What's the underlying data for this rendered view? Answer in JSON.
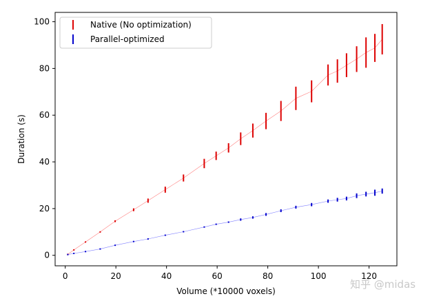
{
  "chart_data": {
    "type": "scatter",
    "title": "",
    "xlabel": "Volume (*10000 voxels)",
    "ylabel": "Duration (s)",
    "xlim": [
      -4,
      131
    ],
    "ylim": [
      -4.5,
      104
    ],
    "xticks": [
      0,
      20,
      40,
      60,
      80,
      100,
      120
    ],
    "yticks": [
      0,
      20,
      40,
      60,
      80,
      100
    ],
    "grid": false,
    "legend_position": "upper-left",
    "series": [
      {
        "name": "Native (No optimization)",
        "color": "#dd0000",
        "fit_color": "#ff8080",
        "x": [
          1,
          3.4,
          8,
          13.8,
          19.7,
          27,
          32.7,
          39.5,
          46.7,
          54.9,
          59.6,
          64.5,
          69.3,
          74.1,
          79.3,
          85.2,
          91.1,
          97.3,
          103.8,
          107.5,
          111.1,
          115.1,
          118.8,
          122.3,
          125.2
        ],
        "y": [
          0.4,
          2.3,
          5.7,
          10.0,
          14.6,
          19.5,
          23.4,
          28.1,
          33.1,
          39.3,
          42.6,
          46.0,
          49.9,
          53.4,
          57.5,
          61.8,
          67.2,
          70.2,
          77.2,
          78.9,
          81.4,
          84.0,
          86.8,
          88.8,
          92.5
        ],
        "err": [
          0.1,
          0.2,
          0.3,
          0.3,
          0.4,
          0.6,
          0.9,
          1.3,
          1.5,
          2.0,
          1.8,
          2.0,
          2.7,
          3.0,
          3.5,
          4.3,
          5.0,
          4.7,
          4.5,
          5.0,
          5.1,
          5.5,
          6.5,
          6.0,
          6.5
        ]
      },
      {
        "name": "Parallel-optimized",
        "color": "#0000cc",
        "fit_color": "#8080ff",
        "x": [
          1,
          3.4,
          8,
          13.8,
          19.7,
          27,
          32.7,
          39.5,
          46.7,
          54.9,
          59.6,
          64.5,
          69.3,
          74.1,
          79.3,
          85.2,
          91.1,
          97.3,
          103.8,
          107.5,
          111.1,
          115.1,
          118.8,
          122.3,
          125.2
        ],
        "y": [
          0.3,
          0.8,
          1.6,
          2.7,
          4.3,
          5.9,
          7.0,
          8.6,
          10.1,
          12.1,
          13.3,
          14.2,
          15.3,
          16.2,
          17.5,
          19.1,
          20.6,
          21.7,
          23.2,
          23.8,
          24.3,
          25.5,
          26.2,
          26.8,
          27.5
        ],
        "err": [
          0.05,
          0.05,
          0.1,
          0.1,
          0.1,
          0.1,
          0.1,
          0.2,
          0.2,
          0.2,
          0.3,
          0.3,
          0.5,
          0.5,
          0.6,
          0.6,
          0.6,
          0.7,
          0.7,
          0.8,
          0.8,
          1.0,
          1.0,
          1.3,
          1.1
        ]
      }
    ]
  },
  "watermark": "知乎 @midas"
}
